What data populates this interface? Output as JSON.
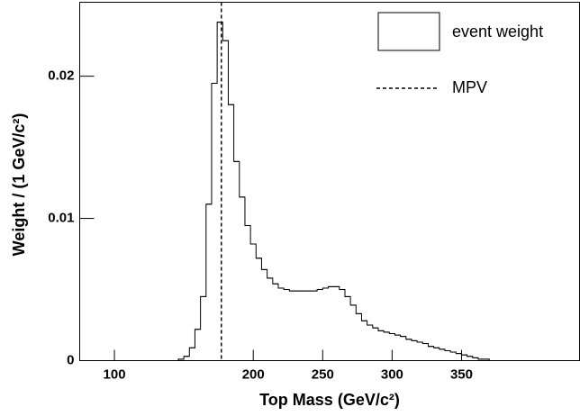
{
  "chart_data": {
    "type": "histogram",
    "xlabel": "Top Mass (GeV/c²)",
    "ylabel": "Weight / (1 GeV/c²)",
    "bins": [
      142,
      146,
      150,
      154,
      158,
      162,
      166,
      170,
      174,
      178,
      182,
      186,
      190,
      194,
      198,
      202,
      206,
      210,
      214,
      218,
      222,
      226,
      230,
      234,
      238,
      242,
      246,
      250,
      254,
      258,
      262,
      266,
      270,
      274,
      278,
      282,
      286,
      290,
      294,
      298,
      302,
      306,
      310,
      314,
      318,
      322,
      326,
      330,
      334,
      338,
      342,
      346,
      350,
      354,
      358,
      362,
      366,
      370,
      374,
      378
    ],
    "series": [
      {
        "name": "event weight",
        "color": "#000000",
        "values": [
          0,
          0.0001,
          0.0003,
          0.0009,
          0.0022,
          0.0045,
          0.011,
          0.0195,
          0.0238,
          0.0225,
          0.018,
          0.014,
          0.0115,
          0.0095,
          0.0082,
          0.0072,
          0.0064,
          0.0058,
          0.0054,
          0.0051,
          0.005,
          0.0049,
          0.0049,
          0.0049,
          0.0049,
          0.0049,
          0.005,
          0.0051,
          0.0052,
          0.0052,
          0.005,
          0.0045,
          0.0039,
          0.0033,
          0.0028,
          0.0025,
          0.0023,
          0.0021,
          0.002,
          0.0019,
          0.0018,
          0.0017,
          0.0015,
          0.0014,
          0.0013,
          0.0012,
          0.001,
          0.0009,
          0.0008,
          0.0007,
          0.0006,
          0.0005,
          0.0004,
          0.0003,
          0.0002,
          0.0001,
          0.0001,
          0,
          0
        ]
      }
    ],
    "mpv": {
      "name": "MPV",
      "value": 177
    },
    "xlim": [
      75,
      435
    ],
    "ylim": [
      0,
      0.0252
    ],
    "xticks": [
      100,
      200,
      250,
      300,
      350
    ],
    "yticks": [
      0,
      0.01,
      0.02
    ],
    "legend": "top-right"
  }
}
